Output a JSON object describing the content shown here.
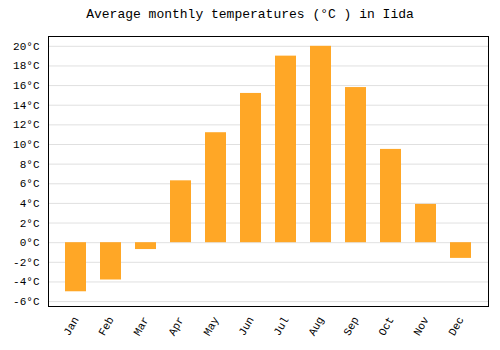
{
  "chart_data": {
    "type": "bar",
    "title": "Average monthly temperatures (°C ) in Iida",
    "categories": [
      "Jan",
      "Feb",
      "Mar",
      "Apr",
      "May",
      "Jun",
      "Jul",
      "Aug",
      "Sep",
      "Oct",
      "Nov",
      "Dec"
    ],
    "values": [
      -5.0,
      -3.8,
      -0.7,
      6.3,
      11.2,
      15.2,
      19.0,
      20.0,
      15.8,
      9.5,
      3.9,
      -1.6
    ],
    "color": "#FFA726",
    "ylim": [
      -6.5,
      21.0
    ],
    "yticks": [
      {
        "value": -6,
        "label": "-6°C"
      },
      {
        "value": -4,
        "label": "-4°C"
      },
      {
        "value": -2,
        "label": "-2°C"
      },
      {
        "value": 0,
        "label": "0°C"
      },
      {
        "value": 2,
        "label": "2°C"
      },
      {
        "value": 4,
        "label": "4°C"
      },
      {
        "value": 6,
        "label": "6°C"
      },
      {
        "value": 8,
        "label": "8°C"
      },
      {
        "value": 10,
        "label": "10°C"
      },
      {
        "value": 12,
        "label": "12°C"
      },
      {
        "value": 14,
        "label": "14°C"
      },
      {
        "value": 16,
        "label": "16°C"
      },
      {
        "value": 18,
        "label": "18°C"
      },
      {
        "value": 20,
        "label": "20°C"
      }
    ],
    "grid": true
  }
}
